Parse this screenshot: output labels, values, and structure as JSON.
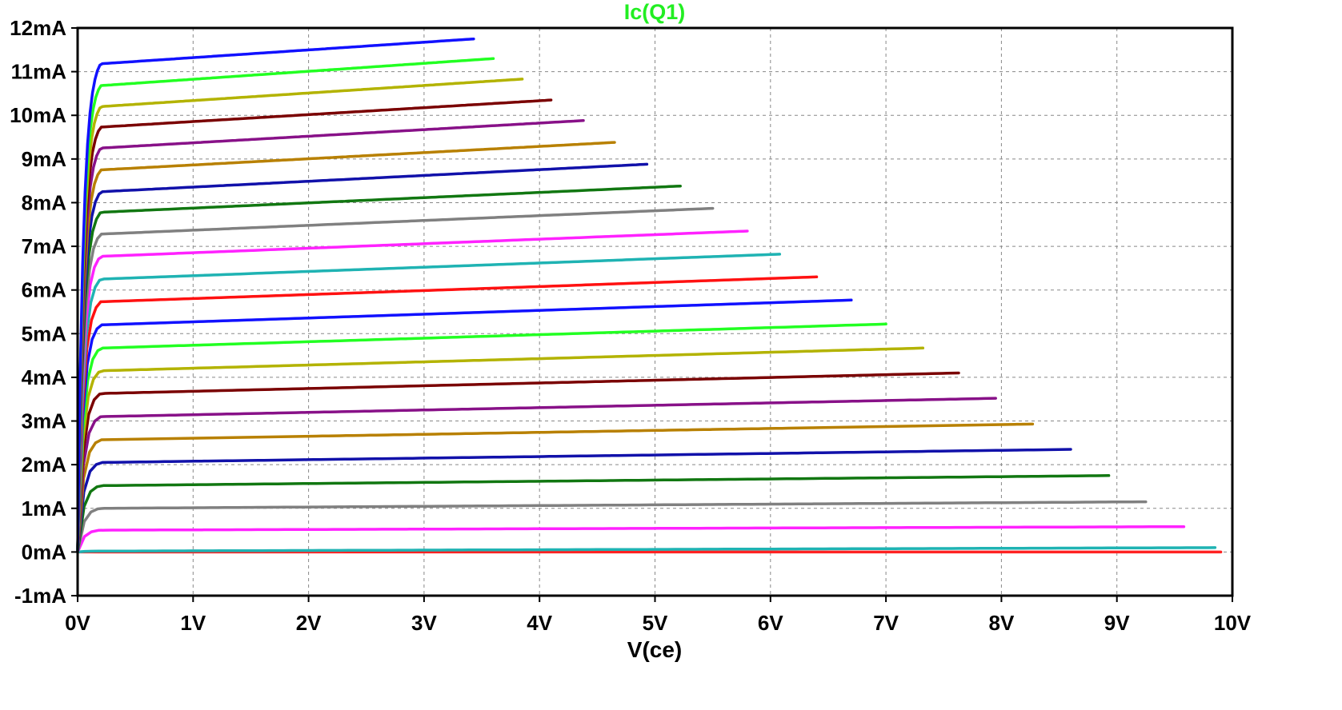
{
  "chart_data": {
    "type": "line",
    "title": "Ic(Q1)",
    "title_color": "#22ee22",
    "xlabel": "V(ce)",
    "ylabel": "",
    "xlim": [
      0,
      10
    ],
    "ylim": [
      -1,
      12
    ],
    "grid": true,
    "x_tick_labels": [
      "0V",
      "1V",
      "2V",
      "3V",
      "4V",
      "5V",
      "6V",
      "7V",
      "8V",
      "9V",
      "10V"
    ],
    "y_tick_labels": [
      "12mA",
      "11mA",
      "10mA",
      "9mA",
      "8mA",
      "7mA",
      "6mA",
      "5mA",
      "4mA",
      "3mA",
      "2mA",
      "1mA",
      "0mA",
      "-1mA"
    ],
    "knee_vce": 0.2,
    "series": [
      {
        "color": "#ff2222",
        "i_sat": 0.0,
        "i_end": 0.0,
        "x_end": 9.9
      },
      {
        "color": "#1fb3b3",
        "i_sat": 0.02,
        "i_end": 0.1,
        "x_end": 9.85
      },
      {
        "color": "#ff22ff",
        "i_sat": 0.5,
        "i_end": 0.58,
        "x_end": 9.58
      },
      {
        "color": "#808080",
        "i_sat": 1.0,
        "i_end": 1.15,
        "x_end": 9.25
      },
      {
        "color": "#117711",
        "i_sat": 1.52,
        "i_end": 1.75,
        "x_end": 8.93
      },
      {
        "color": "#1111aa",
        "i_sat": 2.05,
        "i_end": 2.35,
        "x_end": 8.6
      },
      {
        "color": "#b88000",
        "i_sat": 2.57,
        "i_end": 2.93,
        "x_end": 8.27
      },
      {
        "color": "#881188",
        "i_sat": 3.1,
        "i_end": 3.52,
        "x_end": 7.95
      },
      {
        "color": "#7a0000",
        "i_sat": 3.63,
        "i_end": 4.1,
        "x_end": 7.63
      },
      {
        "color": "#b3b300",
        "i_sat": 4.15,
        "i_end": 4.67,
        "x_end": 7.32
      },
      {
        "color": "#22ff22",
        "i_sat": 4.67,
        "i_end": 5.22,
        "x_end": 7.0
      },
      {
        "color": "#1111ff",
        "i_sat": 5.2,
        "i_end": 5.77,
        "x_end": 6.7
      },
      {
        "color": "#ff1111",
        "i_sat": 5.73,
        "i_end": 6.3,
        "x_end": 6.4
      },
      {
        "color": "#1fb3b3",
        "i_sat": 6.25,
        "i_end": 6.82,
        "x_end": 6.08
      },
      {
        "color": "#ff22ff",
        "i_sat": 6.77,
        "i_end": 7.35,
        "x_end": 5.8
      },
      {
        "color": "#808080",
        "i_sat": 7.28,
        "i_end": 7.87,
        "x_end": 5.5
      },
      {
        "color": "#117711",
        "i_sat": 7.78,
        "i_end": 8.38,
        "x_end": 5.22
      },
      {
        "color": "#1111aa",
        "i_sat": 8.25,
        "i_end": 8.88,
        "x_end": 4.93
      },
      {
        "color": "#b88000",
        "i_sat": 8.75,
        "i_end": 9.38,
        "x_end": 4.65
      },
      {
        "color": "#881188",
        "i_sat": 9.25,
        "i_end": 9.88,
        "x_end": 4.38
      },
      {
        "color": "#7a0000",
        "i_sat": 9.73,
        "i_end": 10.35,
        "x_end": 4.1
      },
      {
        "color": "#b3b300",
        "i_sat": 10.2,
        "i_end": 10.83,
        "x_end": 3.85
      },
      {
        "color": "#22ff22",
        "i_sat": 10.68,
        "i_end": 11.3,
        "x_end": 3.6
      },
      {
        "color": "#1111ff",
        "i_sat": 11.18,
        "i_end": 11.75,
        "x_end": 3.43
      }
    ]
  }
}
